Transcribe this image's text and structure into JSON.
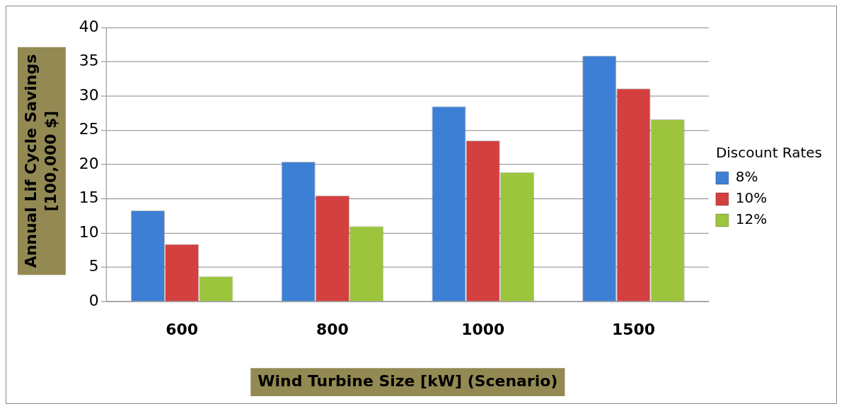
{
  "chart_data": {
    "type": "bar",
    "xlabel": "Wind Turbine Size [kW] (Scenario)",
    "ylabel": "Annual Lif Cycle Savings [100,000 $]",
    "legend_title": "Discount Rates",
    "categories": [
      "600",
      "800",
      "1000",
      "1500"
    ],
    "series": [
      {
        "name": "8%",
        "color": "#3d7fd4",
        "values": [
          13.3,
          20.4,
          28.5,
          35.9
        ]
      },
      {
        "name": "10%",
        "color": "#d43f3f",
        "values": [
          8.4,
          15.5,
          23.5,
          31.1
        ]
      },
      {
        "name": "12%",
        "color": "#9cc43c",
        "values": [
          3.7,
          11.0,
          18.9,
          26.6
        ]
      }
    ],
    "ylim": [
      0,
      40
    ],
    "yticks": [
      0,
      5,
      10,
      15,
      20,
      25,
      30,
      35,
      40
    ],
    "grid": "y",
    "legend": "right"
  }
}
